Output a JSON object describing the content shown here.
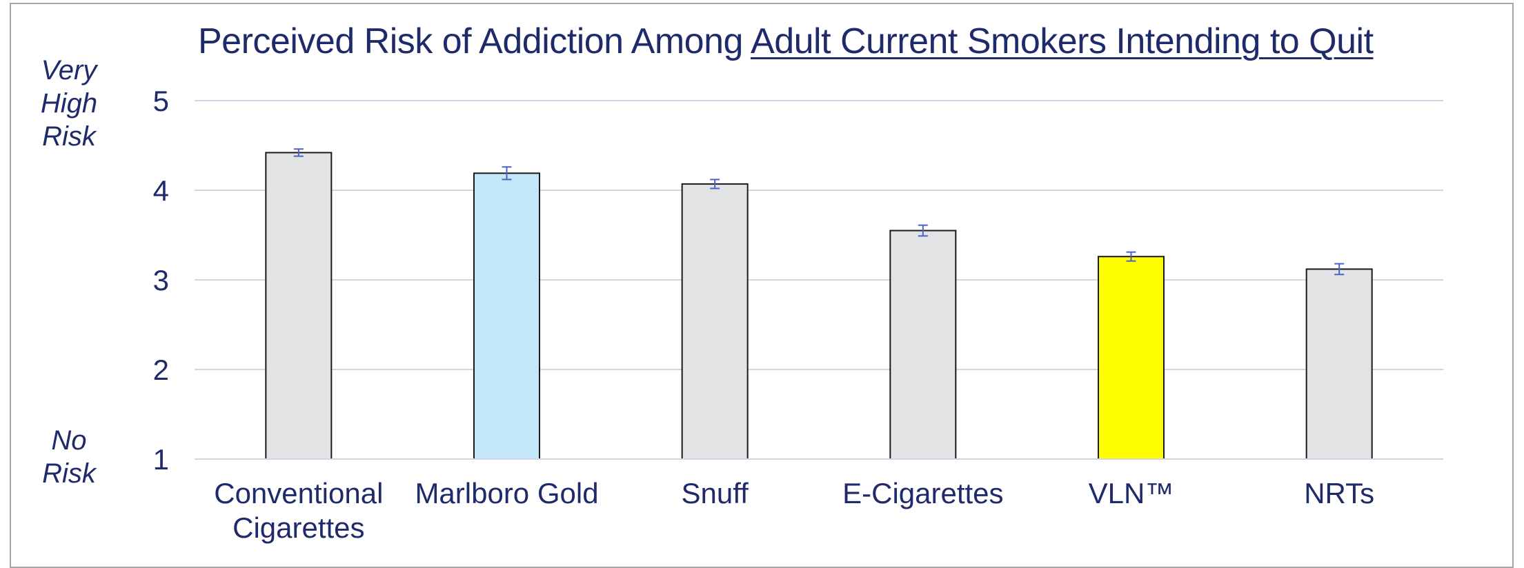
{
  "title_prefix": "Perceived Risk of Addiction Among ",
  "title_underlined": "Adult Current Smokers Intending to Quit",
  "y_top_label": "Very High Risk",
  "y_bottom_label": "No Risk",
  "colors": {
    "text": "#1f2a6b",
    "grid": "#d3d5e6",
    "bar_default": "#e2e3e5",
    "bar_highlight_blue": "#c3e6f9",
    "bar_highlight_yellow": "#ffff00",
    "error_bar": "#4a63c8"
  },
  "chart_data": {
    "type": "bar",
    "title": "Perceived Risk of Addiction Among Adult Current Smokers Intending to Quit",
    "categories": [
      [
        "Conventional",
        "Cigarettes"
      ],
      [
        "Marlboro Gold"
      ],
      [
        "Snuff"
      ],
      [
        "E-Cigarettes"
      ],
      [
        "VLN™"
      ],
      [
        "NRTs"
      ]
    ],
    "values": [
      4.42,
      4.19,
      4.07,
      3.55,
      3.26,
      3.12
    ],
    "error": [
      0.04,
      0.07,
      0.05,
      0.06,
      0.05,
      0.06
    ],
    "bar_colors": [
      "#e2e3e5",
      "#c3e6f9",
      "#e2e3e5",
      "#e2e3e5",
      "#ffff00",
      "#e2e3e5"
    ],
    "ylim": [
      1,
      5
    ],
    "yticks": [
      1,
      2,
      3,
      4,
      5
    ],
    "grid": true,
    "legend": "none"
  }
}
